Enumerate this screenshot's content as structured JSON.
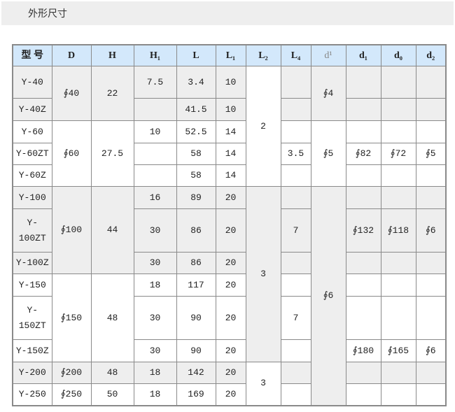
{
  "title": "外形尺寸",
  "colors": {
    "header_bg": "#d3e8fb",
    "shaded_row": "#eeeeee",
    "border": "#8a8a8a"
  },
  "table": {
    "headers": [
      "型 号",
      "D",
      "H",
      "H₁",
      "L",
      "L₁",
      "L₂",
      "L₄",
      "d¹",
      "d₁",
      "d₀",
      "d₂"
    ],
    "rows": [
      {
        "heights": 46,
        "cells": [
          {
            "v": "Y-40",
            "s": 1
          },
          {
            "v": "∮40",
            "rs": 2,
            "s": 1
          },
          {
            "v": "22",
            "rs": 2,
            "s": 1
          },
          {
            "v": "7.5",
            "s": 1
          },
          {
            "v": "3.4",
            "s": 1
          },
          {
            "v": "10",
            "s": 1
          },
          {
            "v": "2",
            "rs": 5,
            "s": 0
          },
          {
            "v": "",
            "s": 1
          },
          {
            "v": "∮4",
            "rs": 2,
            "s": 1
          },
          {
            "v": "",
            "s": 1
          },
          {
            "v": "",
            "s": 1
          },
          {
            "v": "",
            "s": 1
          }
        ]
      },
      {
        "heights": 32,
        "cells": [
          {
            "v": "Y-40Z",
            "s": 1
          },
          {
            "v": "",
            "s": 1
          },
          {
            "v": "41.5",
            "s": 1
          },
          {
            "v": "10",
            "s": 1
          },
          {
            "v": "",
            "s": 1
          },
          {
            "v": "",
            "s": 1
          },
          {
            "v": "",
            "s": 1
          },
          {
            "v": "",
            "s": 1
          }
        ]
      },
      {
        "heights": 32,
        "cells": [
          {
            "v": "Y-60",
            "s": 0
          },
          {
            "v": "∮60",
            "rs": 3,
            "s": 0
          },
          {
            "v": "27.5",
            "rs": 3,
            "s": 0
          },
          {
            "v": "10",
            "s": 0
          },
          {
            "v": "52.5",
            "s": 0
          },
          {
            "v": "14",
            "s": 0
          },
          {
            "v": "",
            "s": 0
          },
          {
            "v": "∮5",
            "rs": 3,
            "s": 0
          },
          {
            "v": "",
            "s": 0
          },
          {
            "v": "",
            "s": 0
          },
          {
            "v": "",
            "s": 0
          }
        ]
      },
      {
        "heights": 31,
        "cells": [
          {
            "v": "Y-60ZT",
            "s": 0
          },
          {
            "v": "",
            "s": 0
          },
          {
            "v": "58",
            "s": 0
          },
          {
            "v": "14",
            "s": 0
          },
          {
            "v": "3.5",
            "s": 0
          },
          {
            "v": "∮82",
            "s": 0
          },
          {
            "v": "∮72",
            "s": 0
          },
          {
            "v": "∮5",
            "s": 0
          }
        ]
      },
      {
        "heights": 31,
        "cells": [
          {
            "v": "Y-60Z",
            "s": 0
          },
          {
            "v": "",
            "s": 0
          },
          {
            "v": "58",
            "s": 0
          },
          {
            "v": "14",
            "s": 0
          },
          {
            "v": "",
            "s": 0
          },
          {
            "v": "",
            "s": 0
          },
          {
            "v": "",
            "s": 0
          },
          {
            "v": "",
            "s": 0
          }
        ]
      },
      {
        "heights": 32,
        "cells": [
          {
            "v": "Y-100",
            "s": 1
          },
          {
            "v": "∮100",
            "rs": 3,
            "s": 1
          },
          {
            "v": "44",
            "rs": 3,
            "s": 1
          },
          {
            "v": "16",
            "s": 1
          },
          {
            "v": "89",
            "s": 1
          },
          {
            "v": "20",
            "s": 1
          },
          {
            "v": "3",
            "rs": 6,
            "s": 1
          },
          {
            "v": "",
            "s": 1
          },
          {
            "v": "∮6",
            "rs": 8,
            "s": 1
          },
          {
            "v": "",
            "s": 1
          },
          {
            "v": "",
            "s": 1
          },
          {
            "v": "",
            "s": 1
          }
        ]
      },
      {
        "heights": 62,
        "cells": [
          {
            "v": "Y-100ZT",
            "s": 1
          },
          {
            "v": "30",
            "s": 1
          },
          {
            "v": "86",
            "s": 1
          },
          {
            "v": "20",
            "s": 1
          },
          {
            "v": "7",
            "s": 1
          },
          {
            "v": "∮132",
            "s": 1
          },
          {
            "v": "∮118",
            "s": 1
          },
          {
            "v": "∮6",
            "s": 1
          }
        ]
      },
      {
        "heights": 31,
        "cells": [
          {
            "v": "Y-100Z",
            "s": 1
          },
          {
            "v": "30",
            "s": 1
          },
          {
            "v": "86",
            "s": 1
          },
          {
            "v": "20",
            "s": 1
          },
          {
            "v": "",
            "s": 1
          },
          {
            "v": "",
            "s": 1
          },
          {
            "v": "",
            "s": 1
          },
          {
            "v": "",
            "s": 1
          }
        ]
      },
      {
        "heights": 32,
        "cells": [
          {
            "v": "Y-150",
            "s": 0
          },
          {
            "v": "∮150",
            "rs": 3,
            "s": 0
          },
          {
            "v": "48",
            "rs": 3,
            "s": 0
          },
          {
            "v": "18",
            "s": 0
          },
          {
            "v": "117",
            "s": 0
          },
          {
            "v": "20",
            "s": 0
          },
          {
            "v": "",
            "s": 0
          },
          {
            "v": "",
            "s": 0
          },
          {
            "v": "",
            "s": 0
          },
          {
            "v": "",
            "s": 0
          }
        ]
      },
      {
        "heights": 62,
        "cells": [
          {
            "v": "Y-150ZT",
            "s": 0
          },
          {
            "v": "30",
            "s": 0
          },
          {
            "v": "90",
            "s": 0
          },
          {
            "v": "20",
            "s": 0
          },
          {
            "v": "7",
            "s": 0
          },
          {
            "v": "",
            "s": 0
          },
          {
            "v": "",
            "s": 0
          },
          {
            "v": "",
            "s": 0
          }
        ]
      },
      {
        "heights": 32,
        "cells": [
          {
            "v": "Y-150Z",
            "s": 0
          },
          {
            "v": "30",
            "s": 0
          },
          {
            "v": "90",
            "s": 0
          },
          {
            "v": "20",
            "s": 0
          },
          {
            "v": "",
            "s": 0
          },
          {
            "v": "∮180",
            "s": 0
          },
          {
            "v": "∮165",
            "s": 0
          },
          {
            "v": "∮6",
            "s": 0
          }
        ]
      },
      {
        "heights": 31,
        "cells": [
          {
            "v": "Y-200",
            "s": 1
          },
          {
            "v": "∮200",
            "s": 1
          },
          {
            "v": "48",
            "s": 1
          },
          {
            "v": "18",
            "s": 1
          },
          {
            "v": "142",
            "s": 1
          },
          {
            "v": "20",
            "s": 1
          },
          {
            "v": "3",
            "rs": 2,
            "s": 0
          },
          {
            "v": "",
            "s": 1
          },
          {
            "v": "",
            "s": 1
          },
          {
            "v": "",
            "s": 1
          },
          {
            "v": "",
            "s": 1
          }
        ]
      },
      {
        "heights": 31,
        "cells": [
          {
            "v": "Y-250",
            "s": 0
          },
          {
            "v": "∮250",
            "s": 0
          },
          {
            "v": "50",
            "s": 0
          },
          {
            "v": "18",
            "s": 0
          },
          {
            "v": "169",
            "s": 0
          },
          {
            "v": "20",
            "s": 0
          },
          {
            "v": "",
            "s": 0
          },
          {
            "v": "",
            "s": 0
          },
          {
            "v": "",
            "s": 0
          },
          {
            "v": "",
            "s": 0
          }
        ]
      }
    ]
  }
}
